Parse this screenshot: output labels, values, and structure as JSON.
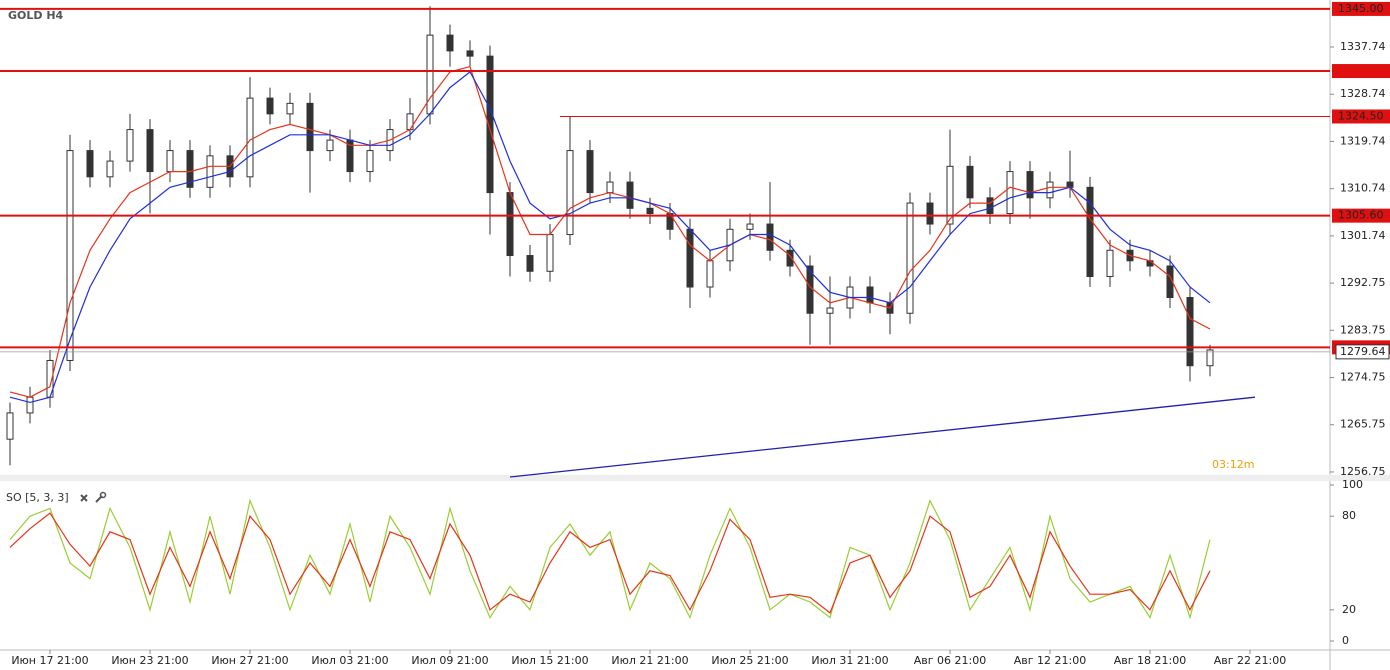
{
  "chart_data": [
    {
      "type": "candlestick",
      "title": "GOLD H4",
      "timer": "03:12m",
      "candle_color": "#333333",
      "open": [
        1263,
        1268,
        1271,
        1278,
        1318,
        1313,
        1316,
        1322,
        1314,
        1318,
        1311,
        1317,
        1313,
        1328,
        1325,
        1327,
        1318,
        1320,
        1314,
        1318,
        1322,
        1325,
        1340,
        1337,
        1336,
        1310,
        1298,
        1295,
        1302,
        1318,
        1310,
        1312,
        1307,
        1306,
        1303,
        1292,
        1297,
        1303,
        1304,
        1299,
        1296,
        1287,
        1288,
        1292,
        1289,
        1287,
        1308,
        1304,
        1315,
        1309,
        1306,
        1314,
        1309,
        1312,
        1311,
        1294,
        1299,
        1297,
        1296,
        1290,
        1277
      ],
      "high": [
        1270,
        1273,
        1280,
        1321,
        1320,
        1318,
        1325,
        1324,
        1320,
        1320,
        1319,
        1319,
        1332,
        1330,
        1329,
        1329,
        1322,
        1322,
        1320,
        1324,
        1328,
        1345.5,
        1342,
        1339,
        1338,
        1312,
        1300,
        1304,
        1324.5,
        1320,
        1314,
        1314,
        1309,
        1308,
        1305,
        1299,
        1305,
        1306,
        1312,
        1301,
        1298,
        1294,
        1294,
        1294,
        1291,
        1310,
        1310,
        1322,
        1317,
        1311,
        1316,
        1316,
        1314,
        1318,
        1313,
        1301,
        1301,
        1299,
        1298,
        1292,
        1281
      ],
      "low": [
        1258,
        1266,
        1269,
        1276,
        1311,
        1311,
        1314,
        1306,
        1312,
        1309,
        1309,
        1311,
        1311,
        1323,
        1323,
        1310,
        1316,
        1312,
        1312,
        1316,
        1320,
        1323,
        1334,
        1334,
        1302,
        1294,
        1293,
        1293,
        1300,
        1308,
        1308,
        1305,
        1304,
        1301,
        1288,
        1290,
        1295,
        1301,
        1297,
        1294,
        1281,
        1281,
        1286,
        1287,
        1283,
        1285,
        1302,
        1302,
        1307,
        1304,
        1304,
        1305,
        1307,
        1309,
        1292,
        1292,
        1295,
        1294,
        1288,
        1274,
        1275
      ],
      "close": [
        1268,
        1271,
        1278,
        1318,
        1313,
        1316,
        1322,
        1314,
        1318,
        1311,
        1317,
        1313,
        1328,
        1325,
        1327,
        1318,
        1320,
        1314,
        1318,
        1322,
        1325,
        1340,
        1337,
        1336,
        1310,
        1298,
        1295,
        1302,
        1318,
        1310,
        1312,
        1307,
        1306,
        1303,
        1292,
        1297,
        1303,
        1304,
        1299,
        1296,
        1287,
        1288,
        1292,
        1289,
        1287,
        1308,
        1304,
        1315,
        1309,
        1306,
        1314,
        1309,
        1312,
        1311,
        1294,
        1299,
        1297,
        1296,
        1290,
        1277,
        1280
      ],
      "series": [
        {
          "color": "#e8331a",
          "values": [
            1272,
            1271,
            1273,
            1289,
            1299,
            1305,
            1310,
            1312,
            1314,
            1314,
            1315,
            1315,
            1320,
            1322,
            1323,
            1322,
            1321,
            1319,
            1319,
            1320,
            1322,
            1328,
            1333,
            1334,
            1322,
            1310,
            1302,
            1302,
            1307,
            1309,
            1310,
            1309,
            1308,
            1306,
            1300,
            1297,
            1300,
            1302,
            1301,
            1298,
            1292,
            1289,
            1290,
            1289,
            1288,
            1295,
            1299,
            1305,
            1308,
            1308,
            1311,
            1310,
            1311,
            1311,
            1305,
            1300,
            1298,
            1297,
            1294,
            1286,
            1284
          ]
        },
        {
          "color": "#1f2ee0",
          "values": [
            1271,
            1270,
            1271,
            1282,
            1292,
            1299,
            1305,
            1308,
            1311,
            1312,
            1313,
            1314,
            1317,
            1319,
            1321,
            1321,
            1321,
            1320,
            1319,
            1319,
            1321,
            1325,
            1330,
            1333,
            1326,
            1316,
            1308,
            1305,
            1306,
            1308,
            1309,
            1309,
            1308,
            1307,
            1303,
            1299,
            1300,
            1302,
            1302,
            1300,
            1295,
            1291,
            1290,
            1290,
            1289,
            1292,
            1297,
            1302,
            1306,
            1307,
            1309,
            1310,
            1310,
            1311,
            1308,
            1303,
            1300,
            1299,
            1297,
            1292,
            1289
          ]
        }
      ],
      "levels": [
        {
          "value": 1345,
          "label": "1345.00"
        },
        1333.16,
        {
          "value": 1305.6,
          "label": "1305.60"
        },
        1280.5
      ],
      "partial_levels": [
        {
          "value": 1324.5,
          "label": "1324.50",
          "x_start": 27.5
        }
      ],
      "level_color": "#e01010",
      "current_price": 1279.64,
      "trendline": {
        "x": [
          25,
          62.25
        ],
        "y": [
          1255.8,
          1271.0
        ],
        "color": "#2020b0"
      },
      "xlim": [
        -0.5,
        66
      ],
      "ylim": [
        1255.6,
        1346.7
      ],
      "yticks": [
        1256.75,
        1265.75,
        1274.75,
        1283.75,
        1292.75,
        1301.74,
        1310.74,
        1319.74,
        1328.74,
        1337.74
      ]
    },
    {
      "type": "line",
      "title": "SO [5, 3, 3]",
      "series": [
        {
          "color": "#9acd32",
          "values": [
            65,
            80,
            85,
            50,
            40,
            85,
            60,
            20,
            70,
            25,
            80,
            30,
            90,
            60,
            20,
            55,
            30,
            75,
            25,
            80,
            60,
            30,
            85,
            45,
            15,
            35,
            20,
            60,
            75,
            55,
            70,
            20,
            50,
            40,
            15,
            55,
            85,
            60,
            20,
            30,
            25,
            15,
            60,
            55,
            20,
            50,
            90,
            65,
            20,
            40,
            60,
            20,
            80,
            40,
            25,
            30,
            35,
            15,
            55,
            15,
            65
          ]
        },
        {
          "color": "#e8331a",
          "values": [
            60,
            72,
            82,
            62,
            48,
            70,
            65,
            30,
            60,
            35,
            70,
            40,
            80,
            65,
            30,
            50,
            35,
            65,
            35,
            70,
            65,
            40,
            75,
            55,
            20,
            30,
            25,
            50,
            70,
            60,
            65,
            30,
            45,
            42,
            20,
            45,
            78,
            65,
            28,
            30,
            28,
            18,
            50,
            55,
            28,
            45,
            80,
            70,
            28,
            35,
            55,
            28,
            70,
            48,
            30,
            30,
            33,
            20,
            45,
            20,
            45
          ]
        }
      ],
      "xlim": [
        -0.5,
        66
      ],
      "ylim": [
        0,
        100
      ],
      "yticks": [
        0,
        20,
        80,
        100
      ],
      "xticks": [
        {
          "value": 2,
          "label": "Июн 17 21:00"
        },
        {
          "value": 7,
          "label": "Июн 23 21:00"
        },
        {
          "value": 12,
          "label": "Июн 27 21:00"
        },
        {
          "value": 17,
          "label": "Июл 03 21:00"
        },
        {
          "value": 22,
          "label": "Июл 09 21:00"
        },
        {
          "value": 27,
          "label": "Июл 15 21:00"
        },
        {
          "value": 32,
          "label": "Июл 21 21:00"
        },
        {
          "value": 37,
          "label": "Июл 25 21:00"
        },
        {
          "value": 42,
          "label": "Июл 31 21:00"
        },
        {
          "value": 47,
          "label": "Авг 06 21:00"
        },
        {
          "value": 52,
          "label": "Авг 12 21:00"
        },
        {
          "value": 57,
          "label": "Авг 18 21:00"
        },
        {
          "value": 62,
          "label": "Авг 22 21:00"
        }
      ]
    }
  ]
}
